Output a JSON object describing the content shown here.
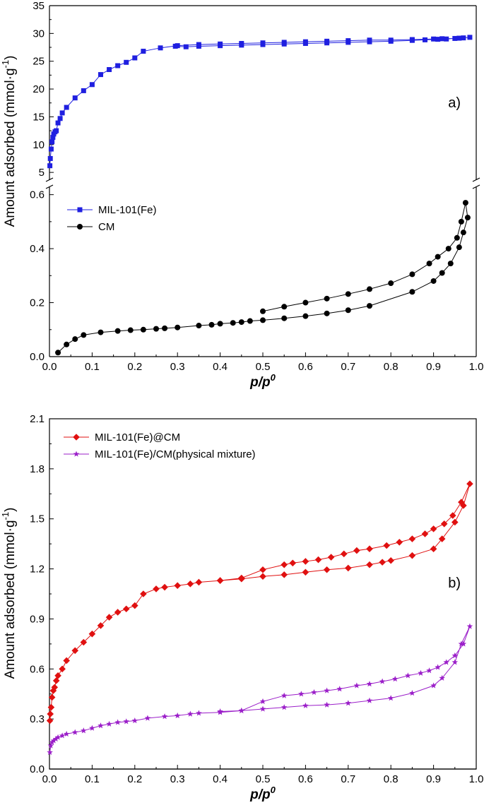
{
  "chart_data": [
    {
      "type": "line",
      "panel_label": "a)",
      "xlabel_base": "p/p",
      "xlabel_sup": "0",
      "ylabel_main": "Amount adsorbed (mmol·g",
      "ylabel_sup": "-1",
      "ylabel_end": ")",
      "xlim": [
        0.0,
        1.0
      ],
      "x_ticks": [
        "0.0",
        "0.1",
        "0.2",
        "0.3",
        "0.4",
        "0.5",
        "0.6",
        "0.7",
        "0.8",
        "0.9",
        "1.0"
      ],
      "broken_y_axis": true,
      "upper_ylim": [
        4,
        35
      ],
      "upper_y_ticks": [
        "5",
        "10",
        "15",
        "20",
        "25",
        "30",
        "35"
      ],
      "lower_ylim": [
        0.0,
        0.62
      ],
      "lower_y_ticks": [
        "0.0",
        "0.2",
        "0.4",
        "0.6"
      ],
      "legend_position": "upper-left of lower segment",
      "series": [
        {
          "name": "MIL-101(Fe)",
          "color": "#1f1fe0",
          "marker": "square",
          "segment": "upper",
          "x": [
            0.001,
            0.002,
            0.004,
            0.006,
            0.008,
            0.01,
            0.013,
            0.016,
            0.02,
            0.025,
            0.03,
            0.04,
            0.06,
            0.08,
            0.1,
            0.12,
            0.14,
            0.16,
            0.18,
            0.2,
            0.22,
            0.26,
            0.3,
            0.35,
            0.4,
            0.45,
            0.5,
            0.55,
            0.6,
            0.65,
            0.7,
            0.75,
            0.8,
            0.85,
            0.9,
            0.92,
            0.95,
            0.97,
            0.985,
            0.96,
            0.93,
            0.91,
            0.88,
            0.85,
            0.8,
            0.75,
            0.7,
            0.65,
            0.6,
            0.55,
            0.5,
            0.45,
            0.4,
            0.35,
            0.32,
            0.295
          ],
          "y": [
            6.2,
            7.5,
            9.2,
            10.5,
            11.3,
            11.9,
            12.3,
            12.5,
            13.9,
            14.7,
            15.7,
            16.7,
            18.4,
            19.7,
            20.8,
            22.6,
            23.5,
            24.2,
            24.8,
            25.6,
            26.8,
            27.4,
            27.8,
            28.0,
            28.1,
            28.2,
            28.3,
            28.4,
            28.5,
            28.6,
            28.7,
            28.8,
            28.8,
            28.9,
            29.0,
            29.05,
            29.1,
            29.2,
            29.3,
            29.15,
            29.0,
            28.95,
            28.85,
            28.75,
            28.6,
            28.5,
            28.4,
            28.3,
            28.2,
            28.1,
            28.0,
            27.9,
            27.8,
            27.7,
            27.6,
            27.7
          ]
        },
        {
          "name": "CM",
          "color": "#000000",
          "marker": "circle",
          "segment": "lower",
          "x": [
            0.02,
            0.04,
            0.06,
            0.08,
            0.12,
            0.16,
            0.19,
            0.22,
            0.25,
            0.27,
            0.3,
            0.35,
            0.38,
            0.4,
            0.43,
            0.45,
            0.47,
            0.5,
            0.55,
            0.6,
            0.65,
            0.7,
            0.75,
            0.85,
            0.9,
            0.92,
            0.94,
            0.96,
            0.97,
            0.98,
            0.975,
            0.965,
            0.955,
            0.935,
            0.91,
            0.89,
            0.85,
            0.8,
            0.75,
            0.7,
            0.65,
            0.6,
            0.55,
            0.5
          ],
          "y": [
            0.015,
            0.045,
            0.065,
            0.08,
            0.09,
            0.095,
            0.098,
            0.1,
            0.103,
            0.105,
            0.108,
            0.115,
            0.118,
            0.122,
            0.125,
            0.128,
            0.132,
            0.135,
            0.142,
            0.15,
            0.16,
            0.172,
            0.188,
            0.24,
            0.28,
            0.31,
            0.345,
            0.405,
            0.46,
            0.515,
            0.57,
            0.5,
            0.44,
            0.4,
            0.37,
            0.345,
            0.305,
            0.272,
            0.25,
            0.232,
            0.215,
            0.2,
            0.185,
            0.168
          ]
        }
      ]
    },
    {
      "type": "line",
      "panel_label": "b)",
      "xlabel_base": "p/p",
      "xlabel_sup": "0",
      "ylabel_main": "Amount adsorbed (mmol·g",
      "ylabel_sup": "-1",
      "ylabel_end": ")",
      "xlim": [
        0.0,
        1.0
      ],
      "ylim": [
        0.0,
        2.1
      ],
      "x_ticks": [
        "0.0",
        "0.1",
        "0.2",
        "0.3",
        "0.4",
        "0.5",
        "0.6",
        "0.7",
        "0.8",
        "0.9",
        "1.0"
      ],
      "y_ticks": [
        "0.0",
        "0.3",
        "0.6",
        "0.9",
        "1.2",
        "1.5",
        "1.8",
        "2.1"
      ],
      "legend_position": "top-left",
      "series": [
        {
          "name": "MIL-101(Fe)@CM",
          "color": "#e01010",
          "marker": "diamond",
          "x": [
            0.001,
            0.002,
            0.004,
            0.006,
            0.009,
            0.012,
            0.016,
            0.02,
            0.03,
            0.04,
            0.06,
            0.08,
            0.1,
            0.12,
            0.14,
            0.16,
            0.18,
            0.2,
            0.22,
            0.25,
            0.27,
            0.3,
            0.33,
            0.35,
            0.4,
            0.45,
            0.5,
            0.55,
            0.6,
            0.65,
            0.7,
            0.75,
            0.78,
            0.8,
            0.85,
            0.9,
            0.92,
            0.95,
            0.97,
            0.985,
            0.965,
            0.945,
            0.925,
            0.9,
            0.88,
            0.85,
            0.82,
            0.79,
            0.75,
            0.72,
            0.69,
            0.66,
            0.63,
            0.6,
            0.57,
            0.55,
            0.5,
            0.45,
            0.4
          ],
          "y": [
            0.29,
            0.33,
            0.37,
            0.43,
            0.47,
            0.49,
            0.53,
            0.56,
            0.6,
            0.65,
            0.71,
            0.76,
            0.81,
            0.86,
            0.91,
            0.94,
            0.96,
            0.98,
            1.05,
            1.08,
            1.09,
            1.1,
            1.11,
            1.12,
            1.13,
            1.14,
            1.155,
            1.165,
            1.18,
            1.195,
            1.205,
            1.225,
            1.24,
            1.25,
            1.28,
            1.32,
            1.38,
            1.48,
            1.58,
            1.71,
            1.6,
            1.52,
            1.47,
            1.44,
            1.41,
            1.38,
            1.36,
            1.34,
            1.32,
            1.31,
            1.29,
            1.27,
            1.255,
            1.245,
            1.235,
            1.225,
            1.195,
            1.145,
            1.13
          ]
        },
        {
          "name": "MIL-101(Fe)/CM(physical mixture)",
          "color": "#9b1fc9",
          "marker": "star",
          "x": [
            0.001,
            0.003,
            0.006,
            0.01,
            0.015,
            0.02,
            0.03,
            0.04,
            0.06,
            0.08,
            0.1,
            0.12,
            0.14,
            0.16,
            0.18,
            0.2,
            0.23,
            0.27,
            0.3,
            0.33,
            0.35,
            0.4,
            0.45,
            0.5,
            0.55,
            0.6,
            0.65,
            0.7,
            0.75,
            0.8,
            0.85,
            0.9,
            0.92,
            0.95,
            0.965,
            0.985,
            0.97,
            0.95,
            0.93,
            0.91,
            0.89,
            0.87,
            0.84,
            0.81,
            0.78,
            0.75,
            0.72,
            0.68,
            0.65,
            0.62,
            0.59,
            0.55,
            0.5,
            0.45,
            0.4
          ],
          "y": [
            0.1,
            0.14,
            0.16,
            0.17,
            0.18,
            0.19,
            0.2,
            0.21,
            0.22,
            0.23,
            0.245,
            0.26,
            0.27,
            0.28,
            0.285,
            0.29,
            0.305,
            0.315,
            0.32,
            0.33,
            0.335,
            0.34,
            0.35,
            0.36,
            0.37,
            0.38,
            0.385,
            0.395,
            0.41,
            0.425,
            0.455,
            0.5,
            0.545,
            0.64,
            0.75,
            0.855,
            0.75,
            0.68,
            0.64,
            0.61,
            0.59,
            0.575,
            0.56,
            0.54,
            0.525,
            0.51,
            0.5,
            0.48,
            0.47,
            0.46,
            0.45,
            0.44,
            0.405,
            0.35,
            0.345
          ]
        }
      ]
    }
  ]
}
